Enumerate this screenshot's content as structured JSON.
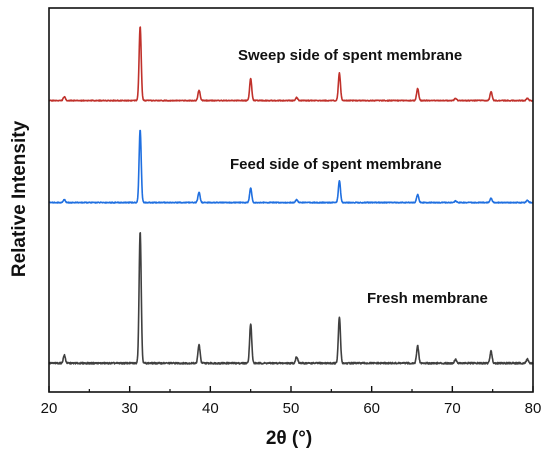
{
  "chart_data": {
    "type": "line",
    "xlabel": "2θ (°)",
    "ylabel": "Relative Intensity",
    "xlim": [
      20,
      80
    ],
    "xticks": [
      20,
      30,
      40,
      50,
      60,
      70,
      80
    ],
    "yticks_shown": false,
    "grid": false,
    "legend": "none",
    "peaks_2theta": [
      21.9,
      31.3,
      38.6,
      45.0,
      50.7,
      56.0,
      65.7,
      70.4,
      74.8,
      79.3
    ],
    "series": [
      {
        "name": "Fresh membrane",
        "color": "#404040",
        "peak_heights": [
          0.06,
          1.0,
          0.14,
          0.3,
          0.05,
          0.35,
          0.13,
          0.03,
          0.09,
          0.03
        ]
      },
      {
        "name": "Feed side of spent membrane",
        "color": "#1f6fe0",
        "peak_heights": [
          0.04,
          1.0,
          0.14,
          0.2,
          0.04,
          0.3,
          0.11,
          0.02,
          0.06,
          0.03
        ]
      },
      {
        "name": "Sweep side of spent membrane",
        "color": "#c0312b",
        "peak_heights": [
          0.05,
          1.0,
          0.14,
          0.3,
          0.04,
          0.37,
          0.16,
          0.03,
          0.12,
          0.03
        ]
      }
    ]
  }
}
